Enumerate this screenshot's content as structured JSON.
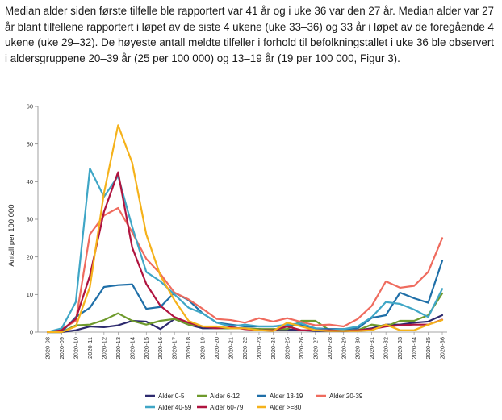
{
  "paragraph": "Median alder siden første tilfelle ble rapportert var 41 år og i uke 36 var den 27 år. Median alder var 27 år blant tilfellene rapportert i løpet av de siste 4 ukene (uke 33–36) og 33 år i løpet av de foregående 4 ukene (uke 29–32). De høyeste antall meldte tilfeller i forhold til befolkningstallet i uke 36 ble observert i aldersgruppene 20–39 år (25 per 100 000) og 13–19 år (19 per 100 000, Figur 3).",
  "chart_data": {
    "type": "line",
    "title": "",
    "xlabel": "",
    "ylabel": "Antall per 100 000",
    "ylim": [
      0,
      60
    ],
    "yticks": [
      0,
      10,
      20,
      30,
      40,
      50,
      60
    ],
    "categories": [
      "2020-08",
      "2020-09",
      "2020-10",
      "2020-11",
      "2020-12",
      "2020-13",
      "2020-14",
      "2020-15",
      "2020-16",
      "2020-17",
      "2020-18",
      "2020-19",
      "2020-20",
      "2020-21",
      "2020-22",
      "2020-23",
      "2020-24",
      "2020-25",
      "2020-26",
      "2020-27",
      "2020-28",
      "2020-29",
      "2020-30",
      "2020-31",
      "2020-32",
      "2020-33",
      "2020-34",
      "2020-35",
      "2020-36"
    ],
    "series": [
      {
        "name": "Alder 0-5",
        "color": "#2d2a6e",
        "values": [
          0,
          0,
          0.5,
          1.5,
          1.3,
          1.8,
          3,
          2.8,
          0.8,
          3.5,
          2,
          1,
          1,
          1,
          1,
          0.8,
          0.5,
          0.7,
          0.5,
          0.3,
          0.3,
          0.2,
          0.5,
          1,
          2,
          2,
          2.5,
          2.8,
          4.5
        ]
      },
      {
        "name": "Alder 6-12",
        "color": "#6e9a2c",
        "values": [
          0,
          0,
          1.8,
          2,
          3.2,
          5,
          3,
          2,
          3,
          3.5,
          2,
          1.5,
          1,
          1,
          1,
          0.8,
          0.8,
          0.8,
          3,
          3,
          0.5,
          0.5,
          0.5,
          2,
          1.5,
          3,
          3,
          4.5,
          10.3
        ]
      },
      {
        "name": "Alder 13-19",
        "color": "#1f6fa8",
        "values": [
          0,
          0,
          4,
          6.5,
          12,
          12.5,
          12.7,
          6.2,
          6.7,
          10.5,
          8.5,
          5,
          2.5,
          2,
          1.5,
          1.5,
          1.5,
          1.8,
          1.8,
          1,
          0.8,
          0.8,
          1,
          3.8,
          4.5,
          10.5,
          9,
          7.8,
          19
        ]
      },
      {
        "name": "Alder 20-39",
        "color": "#ef6b5e",
        "values": [
          0,
          0.8,
          3,
          26,
          31,
          33,
          26.5,
          19.5,
          15.5,
          10.5,
          8.7,
          6.2,
          3.5,
          3.2,
          2.5,
          3.7,
          2.8,
          3.7,
          2.7,
          1.8,
          2,
          1.5,
          3.5,
          7,
          13.5,
          11.8,
          12.3,
          16,
          25
        ]
      },
      {
        "name": "Alder 40-59",
        "color": "#3fa6c6",
        "values": [
          0,
          1,
          8,
          43.5,
          36,
          41.5,
          28,
          16,
          13.5,
          10,
          6.5,
          5,
          2.5,
          1.5,
          2,
          1.5,
          1.5,
          2,
          2.3,
          1,
          0.5,
          0.8,
          1.5,
          4,
          8,
          7.5,
          6,
          4,
          11.5
        ]
      },
      {
        "name": "Alder 60-79",
        "color": "#b0143f",
        "values": [
          0,
          0.5,
          3.5,
          15,
          32,
          42.5,
          22.5,
          12.8,
          7,
          4,
          2.5,
          1.5,
          1,
          1.3,
          0.8,
          0.5,
          0.5,
          1.5,
          0.5,
          0.5,
          0.5,
          0.3,
          0.5,
          0.8,
          1.5,
          1.8,
          2,
          2,
          3.3
        ]
      },
      {
        "name": "Alder >=80",
        "color": "#f5b21b",
        "values": [
          0,
          0,
          1.5,
          12,
          37,
          55,
          45,
          26,
          15,
          8.5,
          3,
          1.5,
          1.5,
          1,
          1,
          0.5,
          0.3,
          2.5,
          1.5,
          0.5,
          0.3,
          0.3,
          0.3,
          0.5,
          2,
          0.5,
          0.5,
          2,
          3.2
        ]
      }
    ],
    "legend": "bottom"
  }
}
